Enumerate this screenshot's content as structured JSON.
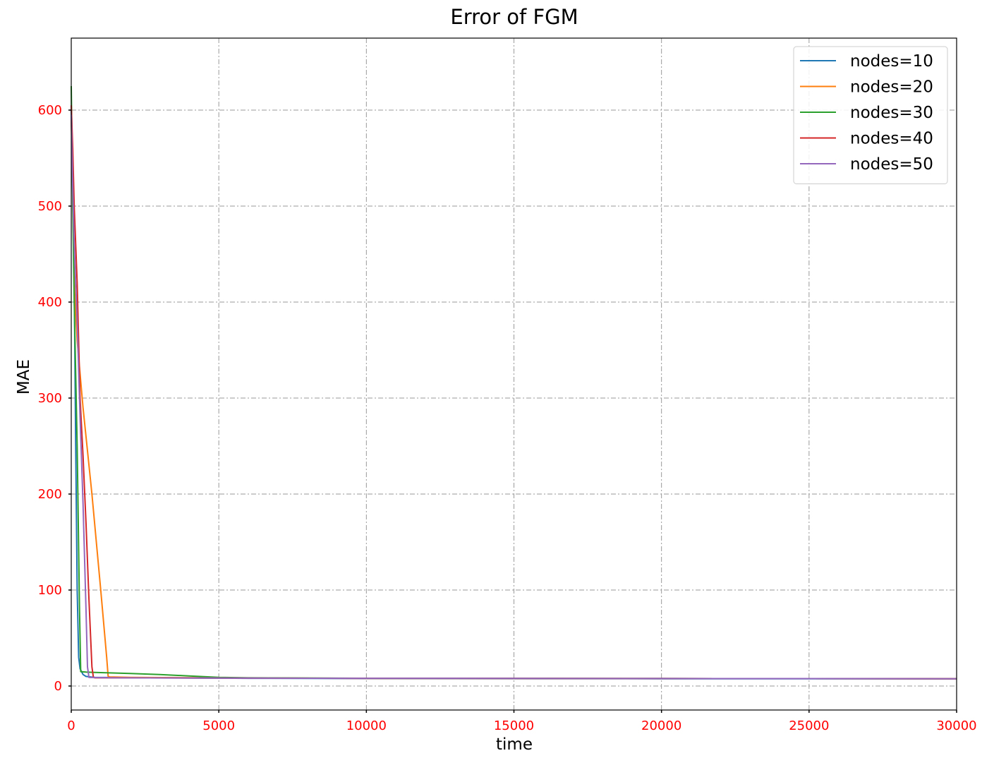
{
  "chart_data": {
    "type": "line",
    "title": "Error of FGM",
    "xlabel": "time",
    "ylabel": "MAE",
    "xlim": [
      0,
      30000
    ],
    "ylim": [
      -25,
      675
    ],
    "xticks": [
      0,
      5000,
      10000,
      15000,
      20000,
      25000,
      30000
    ],
    "xtick_labels": [
      "0",
      "5000",
      "10000",
      "15000",
      "20000",
      "25000",
      "30000"
    ],
    "yticks": [
      0,
      100,
      200,
      300,
      400,
      500,
      600
    ],
    "ytick_labels": [
      "0",
      "100",
      "200",
      "300",
      "400",
      "500",
      "600"
    ],
    "tick_label_color": "#ff0000",
    "grid": true,
    "legend_position": "top-right",
    "series": [
      {
        "name": "nodes=10",
        "color": "#1f77b4",
        "x": [
          0,
          100,
          150,
          200,
          250,
          300,
          400,
          500,
          800,
          1500,
          3000,
          6000,
          10000,
          20000,
          30000
        ],
        "y": [
          600,
          420,
          250,
          100,
          30,
          18,
          12,
          10,
          9,
          8.8,
          8.5,
          8,
          7.8,
          7.6,
          7.5
        ]
      },
      {
        "name": "nodes=20",
        "color": "#ff7f0e",
        "x": [
          0,
          50,
          100,
          200,
          400,
          700,
          1000,
          1200,
          1250,
          1300,
          2000,
          5000,
          10000,
          20000,
          30000
        ],
        "y": [
          590,
          520,
          420,
          360,
          290,
          200,
          100,
          30,
          10,
          9.5,
          9,
          8.5,
          8,
          7.8,
          7.6
        ]
      },
      {
        "name": "nodes=30",
        "color": "#2ca02c",
        "x": [
          0,
          50,
          100,
          200,
          280,
          320,
          500,
          1000,
          2000,
          3000,
          4000,
          5000,
          6000,
          10000,
          20000,
          30000
        ],
        "y": [
          625,
          500,
          400,
          250,
          80,
          15,
          14.5,
          14,
          13,
          12,
          10.5,
          9,
          8.5,
          8,
          7.8,
          7.6
        ]
      },
      {
        "name": "nodes=40",
        "color": "#d62728",
        "x": [
          0,
          50,
          100,
          200,
          300,
          400,
          500,
          600,
          700,
          750,
          800,
          1500,
          5000,
          10000,
          20000,
          30000
        ],
        "y": [
          605,
          560,
          500,
          420,
          300,
          240,
          170,
          90,
          20,
          9,
          8.5,
          8.5,
          8.2,
          8,
          7.8,
          7.6
        ]
      },
      {
        "name": "nodes=50",
        "color": "#9467bd",
        "x": [
          0,
          50,
          100,
          200,
          300,
          400,
          500,
          550,
          600,
          1500,
          5000,
          10000,
          20000,
          30000
        ],
        "y": [
          595,
          520,
          460,
          380,
          280,
          190,
          80,
          20,
          9,
          8.5,
          8.2,
          8,
          7.8,
          7.6
        ]
      }
    ]
  }
}
